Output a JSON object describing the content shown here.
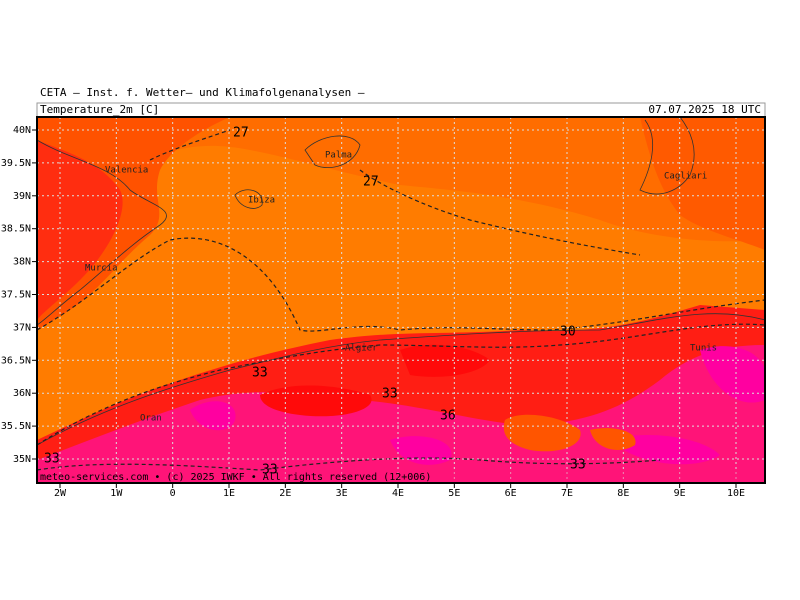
{
  "header": {
    "title": "CETA – Inst. f. Wetter– und Klimafolgenanalysen –",
    "variable": "Temperature_2m [C]",
    "valid_time": "07.07.2025 18 UTC"
  },
  "lat_labels": [
    "40N",
    "39.5N",
    "39N",
    "38.5N",
    "38N",
    "37.5N",
    "37N",
    "36.5N",
    "36N",
    "35.5N",
    "35N"
  ],
  "lon_labels": [
    "2W",
    "1W",
    "0",
    "1E",
    "2E",
    "3E",
    "4E",
    "5E",
    "6E",
    "7E",
    "8E",
    "9E",
    "10E"
  ],
  "places": [
    "Valencia",
    "Ibiza",
    "Palma",
    "Murcia",
    "Algier",
    "Oran",
    "Tunis",
    "Cagliari"
  ],
  "contour_labels": [
    "27",
    "27",
    "30",
    "33",
    "33",
    "36",
    "33",
    "33",
    "33"
  ],
  "footer": "meteo-services.com • (c) 2025 IWKF • All rights reserved (12+006)"
}
